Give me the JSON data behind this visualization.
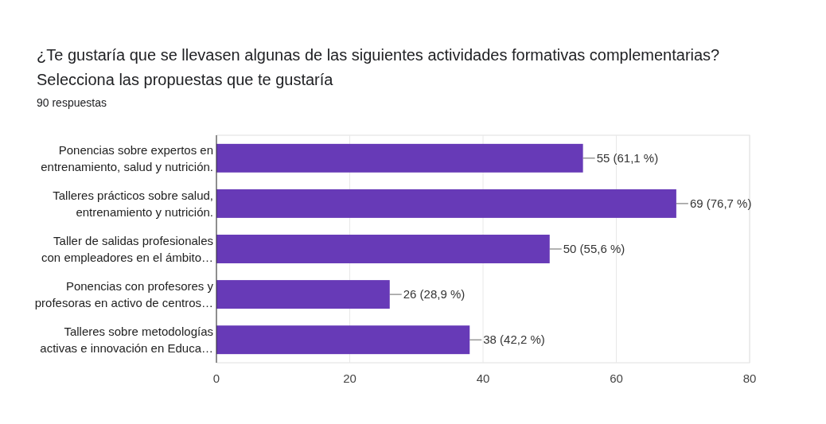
{
  "chart_data": {
    "type": "bar",
    "orientation": "horizontal",
    "title": "¿Te gustaría que se llevasen algunas de las siguientes actividades formativas complementarias? Selecciona las propuestas que te gustaría",
    "subtitle": "90 respuestas",
    "categories": [
      "Ponencias sobre expertos en\nentrenamiento, salud y nutrición.",
      "Talleres prácticos sobre salud,\nentrenamiento y nutrición.",
      "Taller de salidas profesionales\ncon empleadores en el ámbito…",
      "Ponencias con profesores y\nprofesoras en activo de centros…",
      "Talleres sobre metodologías\nactivas e innovación en Educa…"
    ],
    "values": [
      55,
      69,
      50,
      26,
      38
    ],
    "color": "#673ab7",
    "value_labels": [
      "55 (61,1 %)",
      "69 (76,7 %)",
      "50 (55,6 %)",
      "26 (28,9 %)",
      "38 (42,2 %)"
    ],
    "xlim": [
      0,
      80
    ],
    "xticks": [
      0,
      20,
      40,
      60,
      80
    ],
    "grid": "x"
  }
}
